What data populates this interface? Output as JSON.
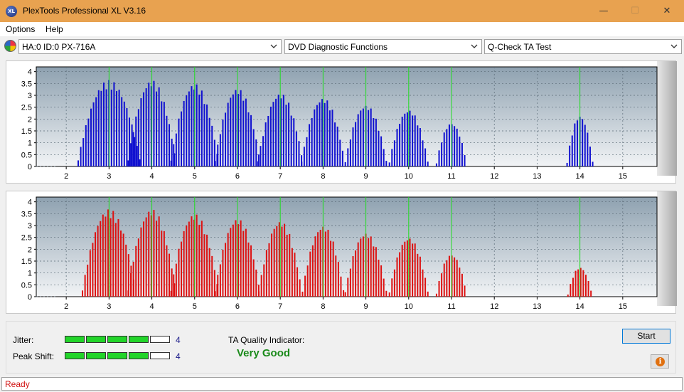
{
  "window": {
    "title": "PlexTools Professional XL V3.16",
    "icon_text": "XL",
    "minimize_glyph": "—",
    "maximize_glyph": "☐",
    "close_glyph": "✕"
  },
  "menu": {
    "items": [
      {
        "label": "Options"
      },
      {
        "label": "Help"
      }
    ]
  },
  "toolbar": {
    "drive_icon": "disc-drive-icon",
    "drive_value": "HA:0 ID:0  PX-716A",
    "function_value": "DVD Diagnostic Functions",
    "test_value": "Q-Check TA Test"
  },
  "colors": {
    "top_bars": "#1010d0",
    "bottom_bars": "#dd1111",
    "marker_lines": "#22dd22",
    "plot_bg_top": "#8ea1b0",
    "plot_bg_bottom": "#f2f4f6",
    "meter_on": "#22d42a",
    "quality": "#1a8a1a",
    "status": "#d01010"
  },
  "chart_data": [
    {
      "type": "bar",
      "id": "ta-top",
      "color": "#1010d0",
      "xlim": [
        1.3,
        15.8
      ],
      "ylim": [
        0,
        4.2
      ],
      "x_ticks": [
        "2",
        "3",
        "4",
        "5",
        "6",
        "7",
        "8",
        "9",
        "10",
        "11",
        "12",
        "13",
        "14",
        "15"
      ],
      "y_ticks": [
        "0",
        "0.5",
        "1",
        "1.5",
        "2",
        "2.5",
        "3",
        "3.5",
        "4"
      ],
      "marker_lines_x": [
        3,
        4,
        5,
        6,
        7,
        8,
        9,
        10,
        11,
        14
      ],
      "peaks": [
        {
          "center": 3.0,
          "height": 3.65,
          "half_width": 0.72
        },
        {
          "center": 4.0,
          "height": 3.65,
          "half_width": 0.55
        },
        {
          "center": 5.0,
          "height": 3.5,
          "half_width": 0.55
        },
        {
          "center": 6.0,
          "height": 3.3,
          "half_width": 0.52
        },
        {
          "center": 7.0,
          "height": 3.1,
          "half_width": 0.52
        },
        {
          "center": 8.0,
          "height": 2.9,
          "half_width": 0.5
        },
        {
          "center": 9.0,
          "height": 2.6,
          "half_width": 0.48
        },
        {
          "center": 10.0,
          "height": 2.4,
          "half_width": 0.45
        },
        {
          "center": 11.0,
          "height": 1.85,
          "half_width": 0.35
        },
        {
          "center": 14.0,
          "height": 2.15,
          "half_width": 0.3
        }
      ]
    },
    {
      "type": "bar",
      "id": "ta-bottom",
      "color": "#dd1111",
      "xlim": [
        1.3,
        15.8
      ],
      "ylim": [
        0,
        4.2
      ],
      "x_ticks": [
        "2",
        "3",
        "4",
        "5",
        "6",
        "7",
        "8",
        "9",
        "10",
        "11",
        "12",
        "13",
        "14",
        "15"
      ],
      "y_ticks": [
        "0",
        "0.5",
        "1",
        "1.5",
        "2",
        "2.5",
        "3",
        "3.5",
        "4"
      ],
      "marker_lines_x": [
        3,
        4,
        5,
        6,
        7,
        8,
        9,
        10,
        11,
        14
      ],
      "peaks": [
        {
          "center": 3.0,
          "height": 3.7,
          "half_width": 0.62
        },
        {
          "center": 4.0,
          "height": 3.7,
          "half_width": 0.55
        },
        {
          "center": 5.0,
          "height": 3.5,
          "half_width": 0.55
        },
        {
          "center": 6.0,
          "height": 3.3,
          "half_width": 0.52
        },
        {
          "center": 7.0,
          "height": 3.2,
          "half_width": 0.5
        },
        {
          "center": 8.0,
          "height": 3.0,
          "half_width": 0.48
        },
        {
          "center": 9.0,
          "height": 2.7,
          "half_width": 0.48
        },
        {
          "center": 10.0,
          "height": 2.5,
          "half_width": 0.45
        },
        {
          "center": 11.0,
          "height": 1.8,
          "half_width": 0.35
        },
        {
          "center": 14.0,
          "height": 1.25,
          "half_width": 0.28
        }
      ]
    }
  ],
  "results": {
    "jitter_label": "Jitter:",
    "jitter_level": 4,
    "jitter_max": 5,
    "jitter_value": "4",
    "peak_shift_label": "Peak Shift:",
    "peak_shift_level": 4,
    "peak_shift_max": 5,
    "peak_shift_value": "4",
    "ta_quality_label": "TA Quality Indicator:",
    "ta_quality_value": "Very Good",
    "start_label": "Start",
    "info_glyph": "i"
  },
  "status": {
    "text": "Ready"
  }
}
